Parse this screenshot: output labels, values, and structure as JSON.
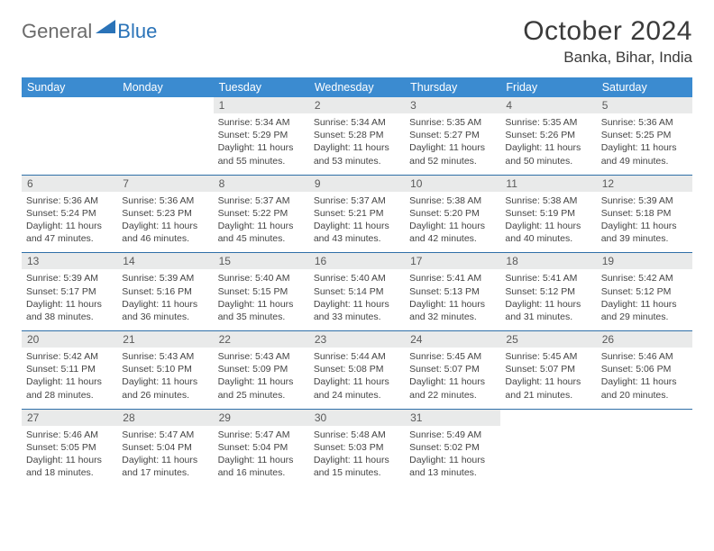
{
  "brand": {
    "part1": "General",
    "part2": "Blue"
  },
  "title": {
    "month": "October 2024",
    "location": "Banka, Bihar, India"
  },
  "colors": {
    "header_bg": "#3b8bd0",
    "header_text": "#ffffff",
    "daynum_bg": "#e9eaea",
    "row_border": "#2f6fa8",
    "brand_gray": "#6b6b6b",
    "brand_blue": "#2a73b8"
  },
  "headers": [
    "Sunday",
    "Monday",
    "Tuesday",
    "Wednesday",
    "Thursday",
    "Friday",
    "Saturday"
  ],
  "weeks": [
    [
      {
        "n": "",
        "empty": true
      },
      {
        "n": "",
        "empty": true
      },
      {
        "n": "1",
        "sr": "5:34 AM",
        "ss": "5:29 PM",
        "dl": "11 hours and 55 minutes."
      },
      {
        "n": "2",
        "sr": "5:34 AM",
        "ss": "5:28 PM",
        "dl": "11 hours and 53 minutes."
      },
      {
        "n": "3",
        "sr": "5:35 AM",
        "ss": "5:27 PM",
        "dl": "11 hours and 52 minutes."
      },
      {
        "n": "4",
        "sr": "5:35 AM",
        "ss": "5:26 PM",
        "dl": "11 hours and 50 minutes."
      },
      {
        "n": "5",
        "sr": "5:36 AM",
        "ss": "5:25 PM",
        "dl": "11 hours and 49 minutes."
      }
    ],
    [
      {
        "n": "6",
        "sr": "5:36 AM",
        "ss": "5:24 PM",
        "dl": "11 hours and 47 minutes."
      },
      {
        "n": "7",
        "sr": "5:36 AM",
        "ss": "5:23 PM",
        "dl": "11 hours and 46 minutes."
      },
      {
        "n": "8",
        "sr": "5:37 AM",
        "ss": "5:22 PM",
        "dl": "11 hours and 45 minutes."
      },
      {
        "n": "9",
        "sr": "5:37 AM",
        "ss": "5:21 PM",
        "dl": "11 hours and 43 minutes."
      },
      {
        "n": "10",
        "sr": "5:38 AM",
        "ss": "5:20 PM",
        "dl": "11 hours and 42 minutes."
      },
      {
        "n": "11",
        "sr": "5:38 AM",
        "ss": "5:19 PM",
        "dl": "11 hours and 40 minutes."
      },
      {
        "n": "12",
        "sr": "5:39 AM",
        "ss": "5:18 PM",
        "dl": "11 hours and 39 minutes."
      }
    ],
    [
      {
        "n": "13",
        "sr": "5:39 AM",
        "ss": "5:17 PM",
        "dl": "11 hours and 38 minutes."
      },
      {
        "n": "14",
        "sr": "5:39 AM",
        "ss": "5:16 PM",
        "dl": "11 hours and 36 minutes."
      },
      {
        "n": "15",
        "sr": "5:40 AM",
        "ss": "5:15 PM",
        "dl": "11 hours and 35 minutes."
      },
      {
        "n": "16",
        "sr": "5:40 AM",
        "ss": "5:14 PM",
        "dl": "11 hours and 33 minutes."
      },
      {
        "n": "17",
        "sr": "5:41 AM",
        "ss": "5:13 PM",
        "dl": "11 hours and 32 minutes."
      },
      {
        "n": "18",
        "sr": "5:41 AM",
        "ss": "5:12 PM",
        "dl": "11 hours and 31 minutes."
      },
      {
        "n": "19",
        "sr": "5:42 AM",
        "ss": "5:12 PM",
        "dl": "11 hours and 29 minutes."
      }
    ],
    [
      {
        "n": "20",
        "sr": "5:42 AM",
        "ss": "5:11 PM",
        "dl": "11 hours and 28 minutes."
      },
      {
        "n": "21",
        "sr": "5:43 AM",
        "ss": "5:10 PM",
        "dl": "11 hours and 26 minutes."
      },
      {
        "n": "22",
        "sr": "5:43 AM",
        "ss": "5:09 PM",
        "dl": "11 hours and 25 minutes."
      },
      {
        "n": "23",
        "sr": "5:44 AM",
        "ss": "5:08 PM",
        "dl": "11 hours and 24 minutes."
      },
      {
        "n": "24",
        "sr": "5:45 AM",
        "ss": "5:07 PM",
        "dl": "11 hours and 22 minutes."
      },
      {
        "n": "25",
        "sr": "5:45 AM",
        "ss": "5:07 PM",
        "dl": "11 hours and 21 minutes."
      },
      {
        "n": "26",
        "sr": "5:46 AM",
        "ss": "5:06 PM",
        "dl": "11 hours and 20 minutes."
      }
    ],
    [
      {
        "n": "27",
        "sr": "5:46 AM",
        "ss": "5:05 PM",
        "dl": "11 hours and 18 minutes."
      },
      {
        "n": "28",
        "sr": "5:47 AM",
        "ss": "5:04 PM",
        "dl": "11 hours and 17 minutes."
      },
      {
        "n": "29",
        "sr": "5:47 AM",
        "ss": "5:04 PM",
        "dl": "11 hours and 16 minutes."
      },
      {
        "n": "30",
        "sr": "5:48 AM",
        "ss": "5:03 PM",
        "dl": "11 hours and 15 minutes."
      },
      {
        "n": "31",
        "sr": "5:49 AM",
        "ss": "5:02 PM",
        "dl": "11 hours and 13 minutes."
      },
      {
        "n": "",
        "empty": true
      },
      {
        "n": "",
        "empty": true
      }
    ]
  ]
}
